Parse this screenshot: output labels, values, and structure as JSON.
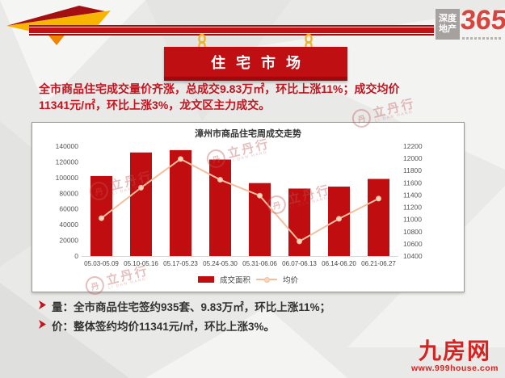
{
  "header": {
    "banner_title": "住宅市场",
    "logo": {
      "box_line1": "深度",
      "box_line2": "地产",
      "number": "365"
    }
  },
  "summary": {
    "line1": "全市商品住宅成交量价齐涨，总成交9.83万㎡，环比上涨11%；成交均价",
    "line2": "11341元/㎡，环比上涨3%，龙文区主力成交。"
  },
  "chart_data": {
    "type": "bar",
    "subtype": "bar+line combo, dual axis",
    "title": "漳州市商品住宅周成交走势",
    "categories": [
      "05.03-05.09",
      "05.10-05.16",
      "05.17-05.23",
      "05.24-05.30",
      "05.31-06.06",
      "06.07-06.13",
      "06.14-06.20",
      "06.21-06.27"
    ],
    "series": [
      {
        "name": "成交面积",
        "type": "bar",
        "axis": "left",
        "color": "#c00d10",
        "values": [
          102000,
          132000,
          135000,
          123000,
          93000,
          86000,
          88500,
          98300
        ]
      },
      {
        "name": "均价",
        "type": "line",
        "axis": "right",
        "color": "#f2bf9e",
        "dot_color": "#fbd8bd",
        "values": [
          11020,
          11520,
          11990,
          11650,
          11390,
          10640,
          11010,
          11341
        ]
      }
    ],
    "left_axis": {
      "min": 0,
      "max": 140000,
      "step": 20000
    },
    "right_axis": {
      "min": 10400,
      "max": 12200,
      "step": 200
    },
    "grid": false,
    "legend_position": "bottom"
  },
  "bullets": [
    {
      "text": "量：全市商品住宅签约935套、9.83万㎡，环比上涨11%；"
    },
    {
      "text": "价：整体签约均价11341元/㎡，环比上涨3%。"
    }
  ],
  "footer_logo": {
    "name": "九房网",
    "url": "www.999house.com"
  },
  "watermark": {
    "text": "立丹行",
    "initial": "丹",
    "subtext": "LI DAN HANG"
  },
  "colors": {
    "primary_red": "#c00f13",
    "text_red": "#c3141f",
    "bar": "#c00d10",
    "line": "#f2bf9e",
    "logo_red": "#d8453e",
    "footer_red": "#d42320"
  }
}
